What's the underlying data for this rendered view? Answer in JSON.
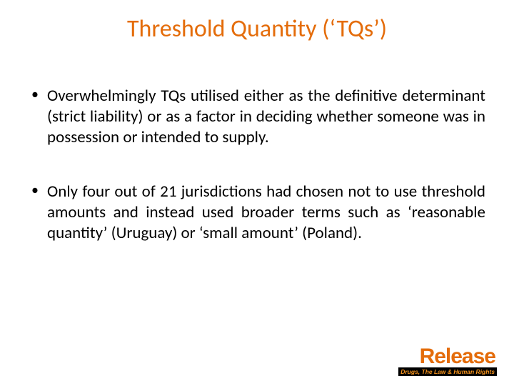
{
  "title": {
    "text": "Threshold Quantity (‘TQs’)",
    "color": "#e46c0a"
  },
  "bullets": [
    "Overwhelmingly TQs utilised either as the definitive determinant (strict liability) or as a factor in deciding whether someone was in possession or intended to supply.",
    "Only four out of 21 jurisdictions had chosen not to use threshold amounts and instead used broader terms such as ‘reasonable quantity’ (Uruguay) or ‘small amount’ (Poland)."
  ],
  "logo": {
    "brand": "Release",
    "brand_color": "#e46c0a",
    "tag": "Drugs, The Law & Human Rights",
    "tag_color": "#f7941d"
  }
}
